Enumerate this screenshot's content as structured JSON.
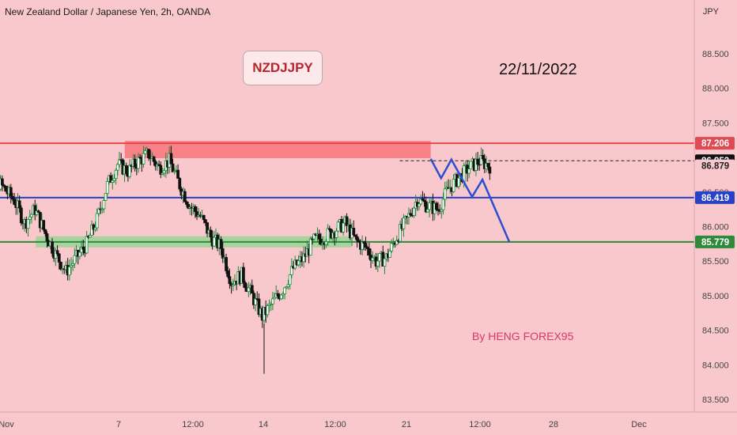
{
  "header": {
    "title": "New Zealand Dollar / Japanese Yen, 2h, OANDA",
    "currency": "JPY"
  },
  "annotations": {
    "symbol_badge": "NZDJJPY",
    "date": "22/11/2022",
    "author": "By HENG FOREX95"
  },
  "colors": {
    "background": "#f9c8cc",
    "resistance": "#e04a52",
    "support_mid": "#2741c8",
    "support_low": "#2e8a3a",
    "projection": "#2b4fd0",
    "candle_bull": "#1e8a3a",
    "candle_bear": "#121212"
  },
  "chart_data": {
    "type": "candlestick",
    "title": "",
    "xlabel": "",
    "ylabel": "",
    "ylim": [
      83.5,
      88.9
    ],
    "y_ticks": [
      "83.500",
      "84.000",
      "84.500",
      "85.000",
      "85.500",
      "86.000",
      "86.500",
      "87.000",
      "87.500",
      "88.000",
      "88.500"
    ],
    "x_ticks": [
      {
        "label": "Nov",
        "x": 1
      },
      {
        "label": "7",
        "x": 7
      },
      {
        "label": "12:00",
        "x": 7.5
      },
      {
        "label": "14",
        "x": 14
      },
      {
        "label": "12:00",
        "x": 14.5
      },
      {
        "label": "21",
        "x": 21
      },
      {
        "label": "12:00",
        "x": 21.5
      },
      {
        "label": "28",
        "x": 28
      },
      {
        "label": "Dec",
        "x": 29
      }
    ],
    "price_labels": [
      {
        "price": 87.206,
        "text": "87.206",
        "style": "red"
      },
      {
        "price": 86.953,
        "text": "86.953",
        "style": "dark"
      },
      {
        "price": 86.879,
        "text": "86.879",
        "style": "plain"
      },
      {
        "price": 86.419,
        "text": "86.419",
        "style": "blue"
      },
      {
        "price": 85.779,
        "text": "85.779",
        "style": "green"
      }
    ],
    "levels": [
      {
        "price": 87.206,
        "color": "#e04a52"
      },
      {
        "price": 86.419,
        "color": "#2741c8"
      },
      {
        "price": 85.779,
        "color": "#2e8a3a"
      }
    ],
    "dashed_level": {
      "price": 86.953,
      "from_x": 20.6
    },
    "zones": [
      {
        "x1": 7.3,
        "x2": 22.1,
        "y1": 86.99,
        "y2": 87.24,
        "color": "#f77a80"
      },
      {
        "x1": 3.0,
        "x2": 18.3,
        "y1": 85.7,
        "y2": 85.86,
        "color": "#9fd49a"
      }
    ],
    "projection": [
      {
        "x": 22.1,
        "y": 86.98
      },
      {
        "x": 22.6,
        "y": 86.7
      },
      {
        "x": 23.1,
        "y": 86.97
      },
      {
        "x": 24.1,
        "y": 86.43
      },
      {
        "x": 24.6,
        "y": 86.68
      },
      {
        "x": 25.9,
        "y": 85.78
      }
    ],
    "price_path": [
      {
        "x": 0.0,
        "y": 86.7
      },
      {
        "x": 0.5,
        "y": 86.85
      },
      {
        "x": 1.0,
        "y": 86.72
      },
      {
        "x": 1.5,
        "y": 86.55
      },
      {
        "x": 2.0,
        "y": 86.38
      },
      {
        "x": 2.5,
        "y": 86.05
      },
      {
        "x": 3.0,
        "y": 86.25
      },
      {
        "x": 3.5,
        "y": 85.9
      },
      {
        "x": 4.0,
        "y": 85.6
      },
      {
        "x": 4.5,
        "y": 85.35
      },
      {
        "x": 5.0,
        "y": 85.55
      },
      {
        "x": 5.5,
        "y": 85.75
      },
      {
        "x": 6.0,
        "y": 86.1
      },
      {
        "x": 6.5,
        "y": 86.6
      },
      {
        "x": 7.0,
        "y": 86.9
      },
      {
        "x": 7.5,
        "y": 86.8
      },
      {
        "x": 8.0,
        "y": 86.95
      },
      {
        "x": 8.5,
        "y": 87.05
      },
      {
        "x": 9.0,
        "y": 86.85
      },
      {
        "x": 9.5,
        "y": 86.95
      },
      {
        "x": 10.0,
        "y": 86.6
      },
      {
        "x": 10.5,
        "y": 86.3
      },
      {
        "x": 11.0,
        "y": 86.15
      },
      {
        "x": 11.5,
        "y": 85.85
      },
      {
        "x": 12.0,
        "y": 85.7
      },
      {
        "x": 12.5,
        "y": 85.2
      },
      {
        "x": 13.0,
        "y": 85.3
      },
      {
        "x": 13.5,
        "y": 85.0
      },
      {
        "x": 14.0,
        "y": 84.7
      },
      {
        "x": 14.5,
        "y": 84.9
      },
      {
        "x": 15.0,
        "y": 85.1
      },
      {
        "x": 15.5,
        "y": 85.4
      },
      {
        "x": 16.0,
        "y": 85.55
      },
      {
        "x": 16.5,
        "y": 85.8
      },
      {
        "x": 17.0,
        "y": 85.85
      },
      {
        "x": 17.5,
        "y": 85.95
      },
      {
        "x": 18.0,
        "y": 86.05
      },
      {
        "x": 18.5,
        "y": 85.8
      },
      {
        "x": 19.0,
        "y": 85.7
      },
      {
        "x": 19.5,
        "y": 85.5
      },
      {
        "x": 20.0,
        "y": 85.55
      },
      {
        "x": 20.5,
        "y": 85.85
      },
      {
        "x": 21.0,
        "y": 86.1
      },
      {
        "x": 21.5,
        "y": 86.4
      },
      {
        "x": 22.0,
        "y": 86.3
      },
      {
        "x": 22.5,
        "y": 86.25
      },
      {
        "x": 23.0,
        "y": 86.55
      },
      {
        "x": 23.5,
        "y": 86.7
      },
      {
        "x": 24.0,
        "y": 86.85
      },
      {
        "x": 24.5,
        "y": 86.95
      },
      {
        "x": 25.0,
        "y": 86.88
      }
    ]
  }
}
